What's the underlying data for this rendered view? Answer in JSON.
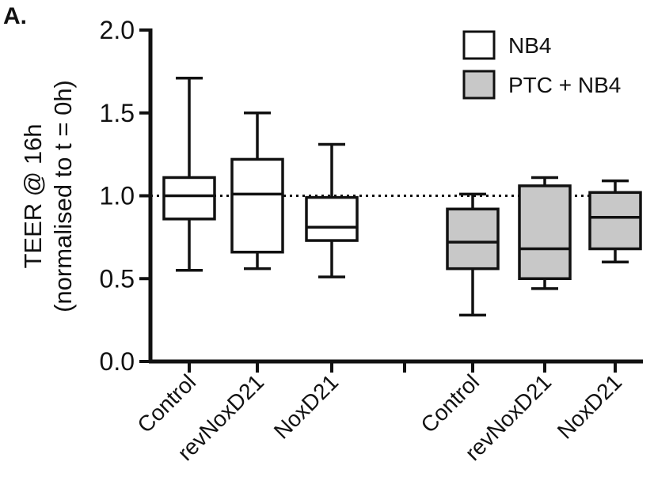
{
  "chart_data": {
    "type": "box",
    "panel_label": "A.",
    "ylabel": "TEER @ 16h",
    "ylabel_sub": "(normalised to t = 0h)",
    "ylim": [
      0.0,
      2.0
    ],
    "yticks": [
      "0.0",
      "0.5",
      "1.0",
      "1.5",
      "2.0"
    ],
    "reference_line": 1.0,
    "series": [
      {
        "name": "NB4",
        "color": "#ffffff",
        "boxes": [
          {
            "category": "Control",
            "min": 0.55,
            "q1": 0.86,
            "median": 1.0,
            "q3": 1.11,
            "max": 1.71
          },
          {
            "category": "revNoxD21",
            "min": 0.56,
            "q1": 0.66,
            "median": 1.01,
            "q3": 1.22,
            "max": 1.5
          },
          {
            "category": "NoxD21",
            "min": 0.51,
            "q1": 0.73,
            "median": 0.81,
            "q3": 0.99,
            "max": 1.31
          }
        ]
      },
      {
        "name": "PTC + NB4",
        "color": "#c8c8c8",
        "boxes": [
          {
            "category": "Control",
            "min": 0.28,
            "q1": 0.56,
            "median": 0.72,
            "q3": 0.92,
            "max": 1.01
          },
          {
            "category": "revNoxD21",
            "min": 0.44,
            "q1": 0.5,
            "median": 0.68,
            "q3": 1.06,
            "max": 1.11
          },
          {
            "category": "NoxD21",
            "min": 0.6,
            "q1": 0.68,
            "median": 0.87,
            "q3": 1.02,
            "max": 1.09
          }
        ]
      }
    ]
  }
}
